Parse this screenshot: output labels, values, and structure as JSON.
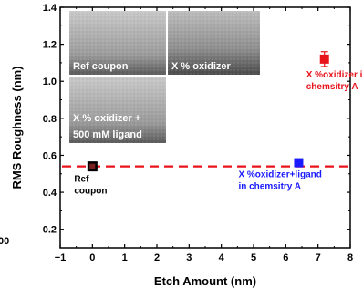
{
  "chart_data": {
    "type": "scatter",
    "xlabel": "Etch Amount (nm)",
    "ylabel": "RMS Roughness (nm)",
    "xlim": [
      -1,
      8
    ],
    "ylim": [
      0.1,
      1.4
    ],
    "xticks": [
      "−1",
      "0",
      "1",
      "2",
      "3",
      "4",
      "5",
      "6",
      "7",
      "8"
    ],
    "yticks": [
      "0.2",
      "0.4",
      "0.6",
      "0.8",
      "1.0",
      "1.2",
      "1.4"
    ],
    "reference_line": {
      "y": 0.54,
      "color": "#e8141c",
      "style": "dashed"
    },
    "series": [
      {
        "x": 0.0,
        "y": 0.54,
        "error": 0.02,
        "color": "#111111",
        "marker": "square-outline",
        "label": [
          "Ref",
          "coupon"
        ],
        "label_color": "#000000"
      },
      {
        "x": 6.4,
        "y": 0.56,
        "error": 0.01,
        "color": "#1a1aff",
        "marker": "square",
        "label": [
          "X %oxidizer+ligand",
          "in chemsitry A"
        ],
        "label_color": "#1a1aff"
      },
      {
        "x": 7.2,
        "y": 1.12,
        "error": 0.04,
        "color": "#e8141c",
        "marker": "square",
        "label": [
          "X %oxidizer in",
          "chemsitry A"
        ],
        "label_color": "#e8141c"
      }
    ]
  },
  "insets": [
    {
      "label": "Ref coupon"
    },
    {
      "label": "X % oxidizer"
    },
    {
      "label": "X % oxidizer +\n500 mM ligand"
    }
  ],
  "edge_text": {
    "left_partial": "00"
  }
}
